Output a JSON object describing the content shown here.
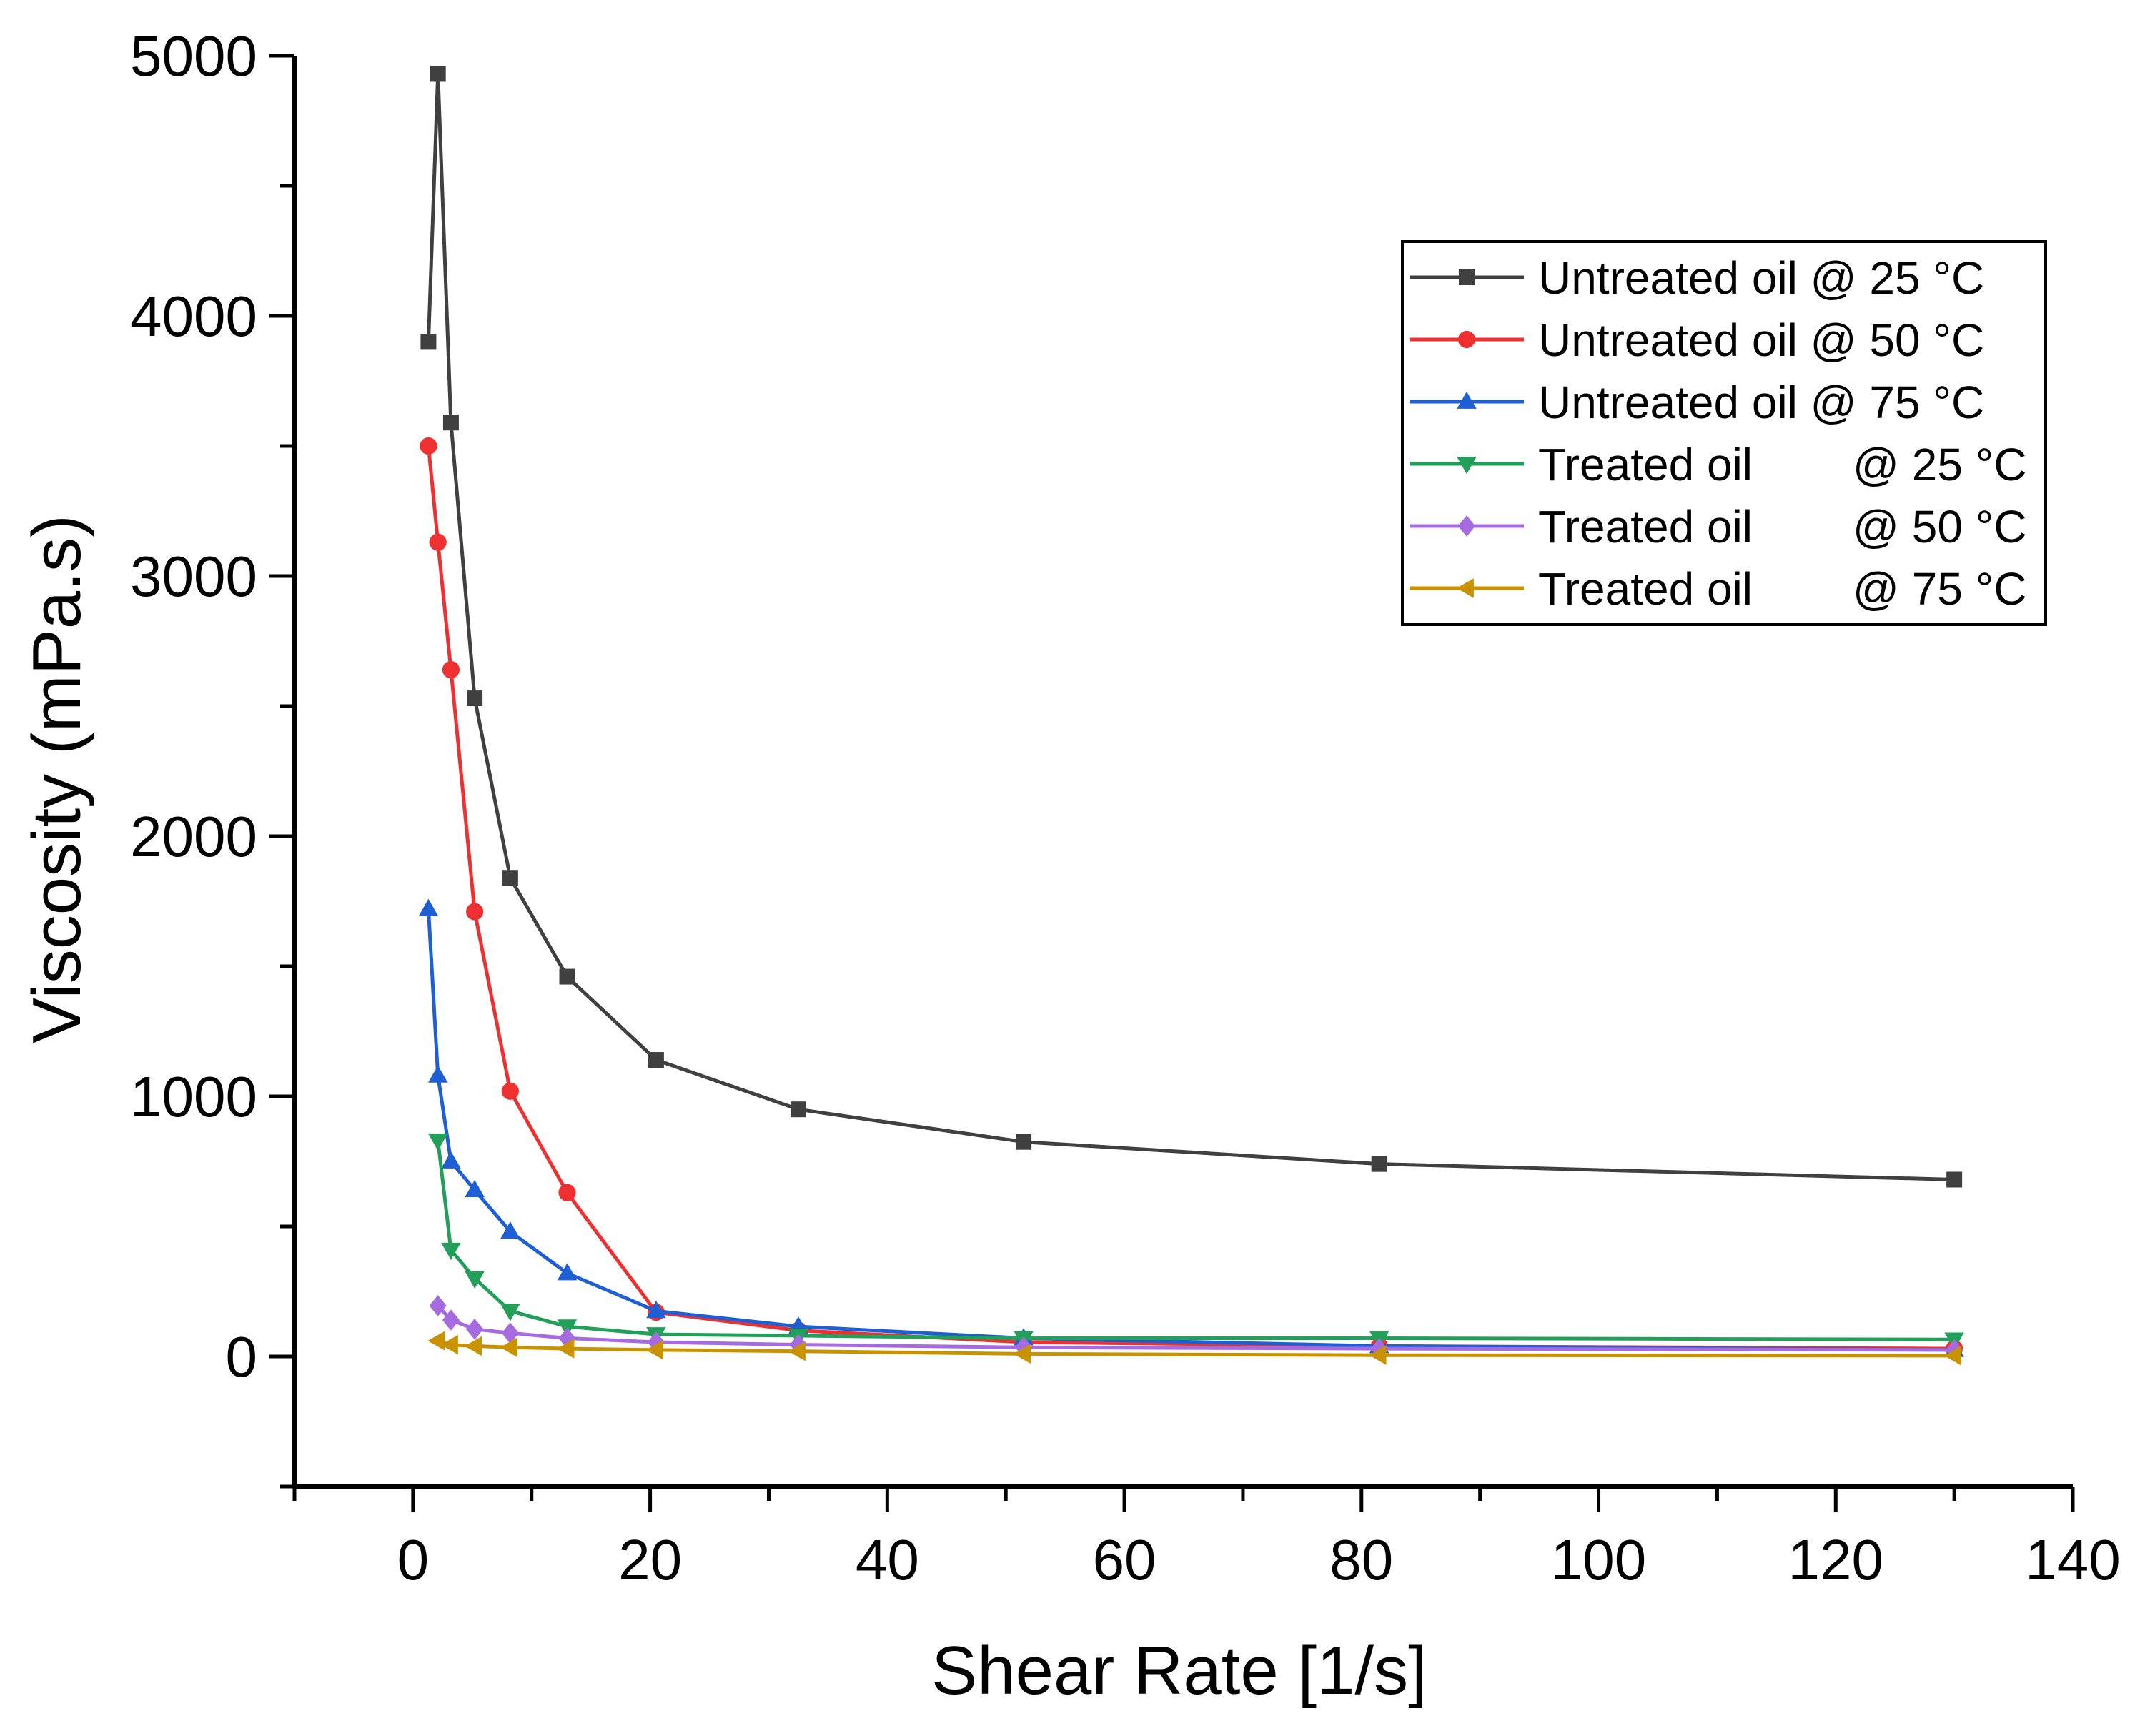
{
  "chart_data": {
    "type": "line",
    "title": "",
    "xlabel": "Shear Rate [1/s]",
    "ylabel": "Viscosity (mPa.s)",
    "xlim": [
      -10,
      140
    ],
    "ylim": [
      -500,
      5000
    ],
    "xticks": [
      0,
      20,
      40,
      60,
      80,
      100,
      120,
      140
    ],
    "yticks": [
      0,
      1000,
      2000,
      3000,
      4000,
      5000
    ],
    "legend_position": "top-right",
    "grid": false,
    "series": [
      {
        "name": "Untreated oil @ 25 °C",
        "legend_label": "Untreated oil @ 25 °C",
        "color": "#404040",
        "marker": "square",
        "x": [
          1.3,
          2.1,
          3.2,
          5.2,
          8.2,
          13.0,
          20.5,
          32.5,
          51.5,
          81.5,
          130.0
        ],
        "y": [
          3900,
          4930,
          3590,
          2530,
          1840,
          1460,
          1140,
          950,
          825,
          740,
          680
        ]
      },
      {
        "name": "Untreated oil @ 50 °C",
        "legend_label": "Untreated oil @ 50 °C",
        "color": "#ee3030",
        "marker": "circle",
        "x": [
          1.3,
          2.1,
          3.2,
          5.2,
          8.2,
          13.0,
          20.5,
          32.5,
          51.5,
          81.5,
          130.0
        ],
        "y": [
          3500,
          3130,
          2640,
          1710,
          1020,
          630,
          170,
          100,
          55,
          40,
          30
        ]
      },
      {
        "name": "Untreated oil @ 75 °C",
        "legend_label": "Untreated oil @ 75 °C",
        "color": "#1f5fd6",
        "marker": "triangle-up",
        "x": [
          1.3,
          2.1,
          3.2,
          5.2,
          8.2,
          13.0,
          20.5,
          32.5,
          51.5,
          81.5,
          130.0
        ],
        "y": [
          1720,
          1080,
          750,
          640,
          480,
          320,
          175,
          115,
          70,
          40,
          25
        ]
      },
      {
        "name": "Treated oil @ 25 °C",
        "legend_label": "Treated oil",
        "legend_temp": "@ 25 °C",
        "color": "#22a05a",
        "marker": "triangle-down",
        "x": [
          2.1,
          3.2,
          5.2,
          8.2,
          13.0,
          20.5,
          32.5,
          51.5,
          81.5,
          130.0
        ],
        "y": [
          830,
          410,
          300,
          175,
          115,
          85,
          80,
          70,
          70,
          65
        ]
      },
      {
        "name": "Treated oil @ 50 °C",
        "legend_label": "Treated oil",
        "legend_temp": "@ 50 °C",
        "color": "#a66be0",
        "marker": "diamond",
        "x": [
          2.1,
          3.2,
          5.2,
          8.2,
          13.0,
          20.5,
          32.5,
          51.5,
          81.5,
          130.0
        ],
        "y": [
          195,
          140,
          105,
          90,
          70,
          55,
          45,
          35,
          30,
          25
        ]
      },
      {
        "name": "Treated oil @ 75 °C",
        "legend_label": "Treated oil",
        "legend_temp": "@ 75 °C",
        "color": "#c89200",
        "marker": "triangle-left",
        "x": [
          2.1,
          3.2,
          5.2,
          8.2,
          13.0,
          20.5,
          32.5,
          51.5,
          81.5,
          130.0
        ],
        "y": [
          60,
          45,
          40,
          35,
          30,
          25,
          20,
          10,
          5,
          3
        ]
      }
    ]
  }
}
